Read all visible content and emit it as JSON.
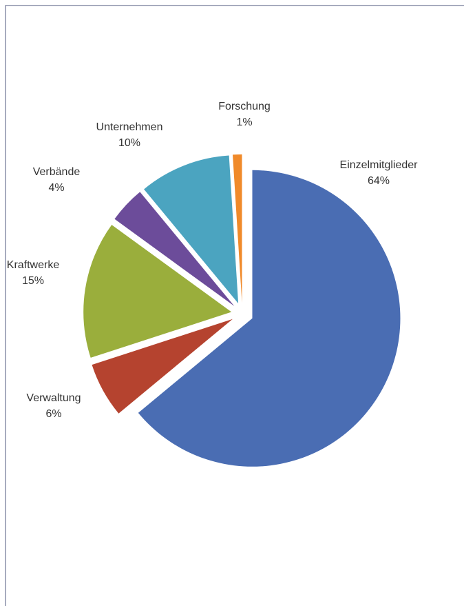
{
  "chart_data": {
    "type": "pie",
    "categories": [
      "Einzelmitglieder",
      "Verwaltung",
      "Kraftwerke",
      "Verbände",
      "Unternehmen",
      "Forschung"
    ],
    "values": [
      64,
      6,
      15,
      4,
      10,
      1
    ],
    "value_labels": [
      "64%",
      "6%",
      "15%",
      "4%",
      "10%",
      "1%"
    ],
    "colors": [
      "#4a6db3",
      "#b5432f",
      "#9aae3c",
      "#6c4c9a",
      "#4ba4c0",
      "#f08a2a"
    ]
  }
}
